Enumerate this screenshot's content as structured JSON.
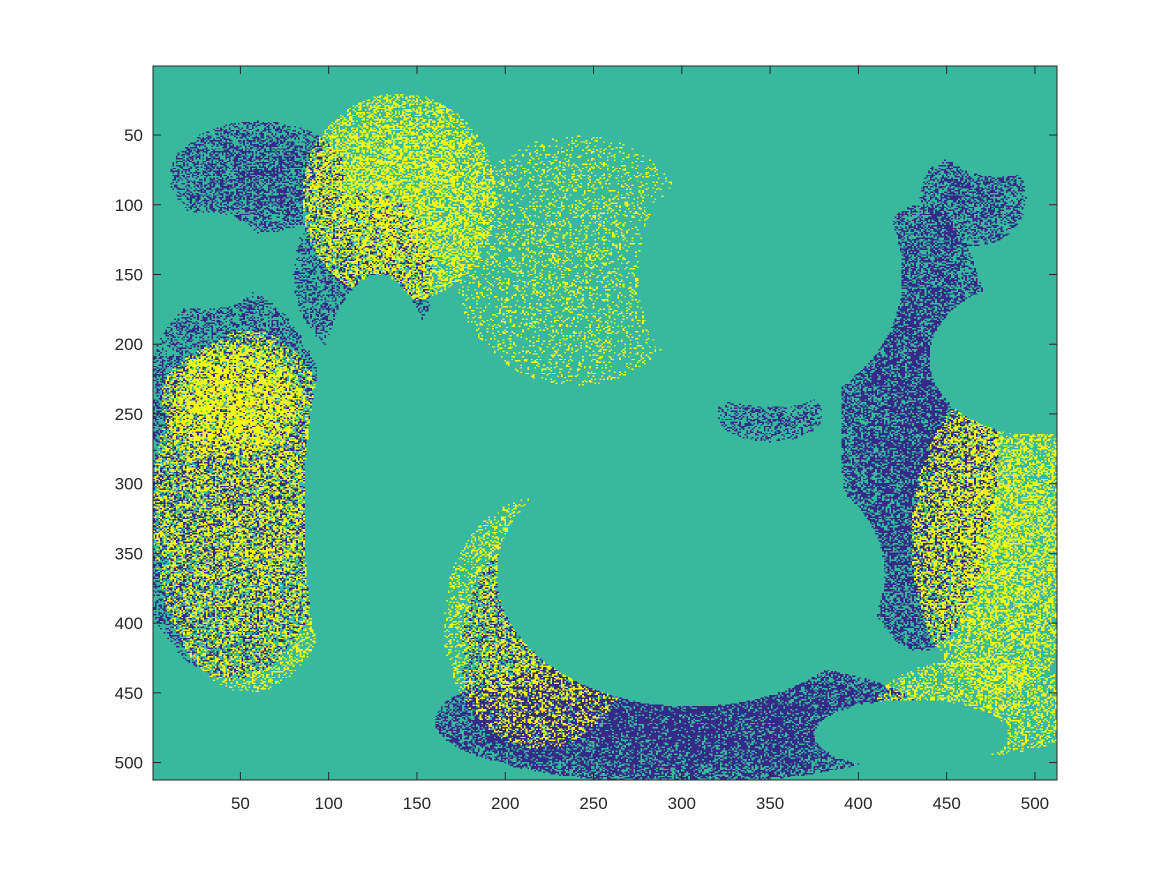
{
  "chart_data": {
    "type": "heatmap",
    "title": "",
    "xlabel": "",
    "ylabel": "",
    "xlim": [
      0.5,
      512.5
    ],
    "ylim": [
      0.5,
      512.5
    ],
    "y_reversed": true,
    "x_ticks": [
      50,
      100,
      150,
      200,
      250,
      300,
      350,
      400,
      450,
      500
    ],
    "x_tick_labels": [
      "50",
      "100",
      "150",
      "200",
      "250",
      "300",
      "350",
      "400",
      "450",
      "500"
    ],
    "y_ticks": [
      50,
      100,
      150,
      200,
      250,
      300,
      350,
      400,
      450,
      500
    ],
    "y_tick_labels": [
      "50",
      "100",
      "150",
      "200",
      "250",
      "300",
      "350",
      "400",
      "450",
      "500"
    ],
    "grid": false,
    "legend": "none",
    "colorbar": false,
    "colormap": "parula",
    "levels": [
      {
        "name": "low",
        "color": "#352a87"
      },
      {
        "name": "mid",
        "color": "#38b99e"
      },
      {
        "name": "high",
        "color": "#f9fb0e"
      }
    ],
    "regions": [
      {
        "level": "high",
        "texture": "speckled",
        "approx_x": [
          95,
          190
        ],
        "approx_y": [
          20,
          150
        ]
      },
      {
        "level": "high",
        "texture": "speckled",
        "approx_x": [
          1,
          100
        ],
        "approx_y": [
          190,
          430
        ]
      },
      {
        "level": "high",
        "texture": "speckled",
        "approx_x": [
          170,
          270
        ],
        "approx_y": [
          200,
          500
        ]
      },
      {
        "level": "high",
        "texture": "speckled",
        "approx_x": [
          420,
          512
        ],
        "approx_y": [
          240,
          480
        ]
      },
      {
        "level": "low",
        "texture": "mixed",
        "approx_x": [
          1,
          100
        ],
        "approx_y": [
          170,
          450
        ]
      },
      {
        "level": "low",
        "texture": "mixed",
        "approx_x": [
          200,
          420
        ],
        "approx_y": [
          350,
          510
        ]
      },
      {
        "level": "low",
        "texture": "mixed",
        "approx_x": [
          390,
          512
        ],
        "approx_y": [
          90,
          420
        ]
      },
      {
        "level": "mid",
        "texture": "solid",
        "approx_x": [
          60,
          200
        ],
        "approx_y": [
          140,
          470
        ]
      },
      {
        "level": "mid",
        "texture": "solid",
        "approx_x": [
          180,
          420
        ],
        "approx_y": [
          240,
          440
        ]
      },
      {
        "level": "mid",
        "texture": "solid",
        "approx_x": [
          400,
          512
        ],
        "approx_y": [
          1,
          300
        ]
      }
    ]
  }
}
